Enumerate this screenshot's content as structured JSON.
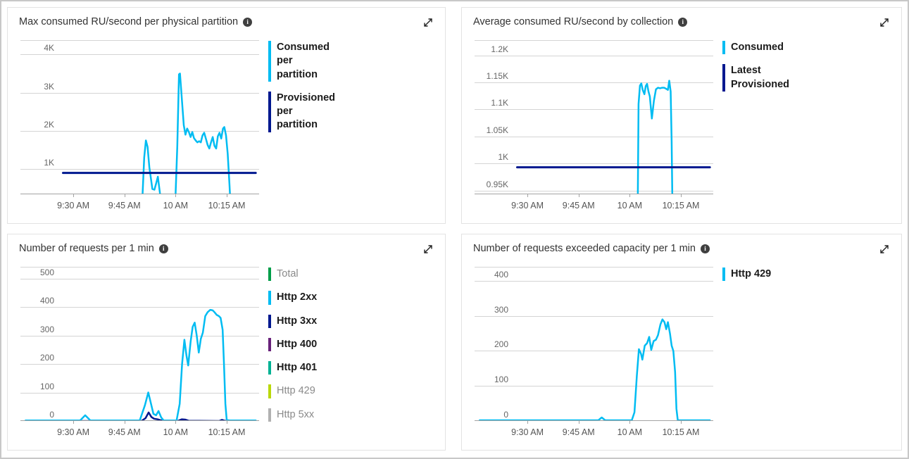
{
  "icons": {
    "info_icon": "i",
    "expand_icon": "diagonal-double-arrow"
  },
  "palette": {
    "cyan": "#00bcf2",
    "navy": "#00188f",
    "green": "#009e49",
    "purple": "#68217a",
    "teal": "#00b294",
    "lime": "#bad80a",
    "grey": "#b1b1b1"
  },
  "chart_data": [
    {
      "type": "line",
      "title": "Max consumed RU/second per physical partition",
      "x_ticks": [
        {
          "minute": 570,
          "label": "9:30 AM"
        },
        {
          "minute": 585,
          "label": "9:45 AM"
        },
        {
          "minute": 600,
          "label": "10 AM"
        },
        {
          "minute": 615,
          "label": "10:15 AM"
        }
      ],
      "x_domain_minutes": [
        554.5,
        624.5
      ],
      "y_domain": [
        340,
        4375
      ],
      "grid": true,
      "legend_position": "right",
      "y_gridlines": [
        {
          "value": 1000,
          "label": "1K"
        },
        {
          "value": 2000,
          "label": "2K"
        },
        {
          "value": 3000,
          "label": "3K"
        },
        {
          "value": 4000,
          "label": "4K"
        }
      ],
      "series": [
        {
          "name": "Consumed per partition",
          "color": "#00bcf2",
          "width": 2.5,
          "points": [
            [
              590.2,
              100
            ],
            [
              590.8,
              1300
            ],
            [
              591.3,
              1750
            ],
            [
              591.8,
              1580
            ],
            [
              592.3,
              1050
            ],
            [
              593.2,
              480
            ],
            [
              593.8,
              460
            ],
            [
              594.3,
              620
            ],
            [
              594.8,
              800
            ],
            [
              595.3,
              450
            ],
            [
              595.8,
              100
            ],
            [
              599.9,
              100
            ],
            [
              600.5,
              1600
            ],
            [
              601.0,
              3480
            ],
            [
              601.3,
              3500
            ],
            [
              601.9,
              2750
            ],
            [
              602.4,
              2150
            ],
            [
              602.9,
              1900
            ],
            [
              603.4,
              2060
            ],
            [
              603.9,
              1970
            ],
            [
              604.4,
              1840
            ],
            [
              604.9,
              1970
            ],
            [
              605.4,
              1810
            ],
            [
              605.9,
              1750
            ],
            [
              606.4,
              1700
            ],
            [
              606.9,
              1730
            ],
            [
              607.4,
              1700
            ],
            [
              607.9,
              1880
            ],
            [
              608.4,
              1950
            ],
            [
              608.9,
              1790
            ],
            [
              609.4,
              1630
            ],
            [
              609.9,
              1540
            ],
            [
              610.4,
              1700
            ],
            [
              610.9,
              1840
            ],
            [
              611.4,
              1610
            ],
            [
              611.9,
              1540
            ],
            [
              612.4,
              1860
            ],
            [
              612.9,
              1950
            ],
            [
              613.4,
              1800
            ],
            [
              613.9,
              2060
            ],
            [
              614.3,
              2100
            ],
            [
              614.8,
              1880
            ],
            [
              615.3,
              1400
            ],
            [
              615.8,
              600
            ],
            [
              616.1,
              100
            ]
          ]
        },
        {
          "name": "Provisioned per partition",
          "color": "#00188f",
          "width": 3,
          "points": [
            [
              567,
              900
            ],
            [
              623.5,
              900
            ]
          ]
        }
      ],
      "legend": [
        {
          "label": "Consumed per partition",
          "color": "#00bcf2",
          "emphasis": true
        },
        {
          "label": "Provisioned per partition",
          "color": "#00188f",
          "emphasis": true
        }
      ]
    },
    {
      "type": "line",
      "title": "Average consumed RU/second by collection",
      "x_ticks": [
        {
          "minute": 570,
          "label": "9:30 AM"
        },
        {
          "minute": 585,
          "label": "9:45 AM"
        },
        {
          "minute": 600,
          "label": "10 AM"
        },
        {
          "minute": 615,
          "label": "10:15 AM"
        }
      ],
      "x_domain_minutes": [
        554.5,
        624.5
      ],
      "y_domain": [
        943,
        1228
      ],
      "grid": true,
      "legend_position": "right",
      "y_gridlines": [
        {
          "value": 950,
          "label": "0.95K"
        },
        {
          "value": 1000,
          "label": "1K"
        },
        {
          "value": 1050,
          "label": "1.05K"
        },
        {
          "value": 1100,
          "label": "1.1K"
        },
        {
          "value": 1150,
          "label": "1.15K"
        },
        {
          "value": 1200,
          "label": "1.2K"
        }
      ],
      "series": [
        {
          "name": "Consumed",
          "color": "#00bcf2",
          "width": 2.5,
          "points": [
            [
              602.3,
              880
            ],
            [
              602.6,
              1110
            ],
            [
              603.0,
              1144
            ],
            [
              603.4,
              1148
            ],
            [
              603.8,
              1136
            ],
            [
              604.3,
              1128
            ],
            [
              604.7,
              1143
            ],
            [
              605.1,
              1147
            ],
            [
              605.5,
              1133
            ],
            [
              605.9,
              1124
            ],
            [
              606.5,
              1083
            ],
            [
              607.1,
              1116
            ],
            [
              607.7,
              1137
            ],
            [
              608.3,
              1140
            ],
            [
              608.9,
              1139
            ],
            [
              609.5,
              1140
            ],
            [
              610.1,
              1140
            ],
            [
              610.7,
              1138
            ],
            [
              611.2,
              1136
            ],
            [
              611.6,
              1153
            ],
            [
              612.0,
              1133
            ],
            [
              612.3,
              1040
            ],
            [
              612.6,
              880
            ]
          ]
        },
        {
          "name": "Latest Provisioned",
          "color": "#00188f",
          "width": 3,
          "points": [
            [
              567,
              993
            ],
            [
              623.5,
              993
            ]
          ]
        }
      ],
      "legend": [
        {
          "label": "Consumed",
          "color": "#00bcf2",
          "emphasis": true
        },
        {
          "label": "Latest Provisioned",
          "color": "#00188f",
          "emphasis": true
        }
      ]
    },
    {
      "type": "line",
      "title": "Number of requests per 1 min",
      "x_ticks": [
        {
          "minute": 570,
          "label": "9:30 AM"
        },
        {
          "minute": 585,
          "label": "9:45 AM"
        },
        {
          "minute": 600,
          "label": "10 AM"
        },
        {
          "minute": 615,
          "label": "10:15 AM"
        }
      ],
      "x_domain_minutes": [
        554.5,
        624.5
      ],
      "y_domain": [
        0,
        541
      ],
      "grid": true,
      "legend_position": "right",
      "y_gridlines": [
        {
          "value": 0,
          "label": "0"
        },
        {
          "value": 100,
          "label": "100"
        },
        {
          "value": 200,
          "label": "200"
        },
        {
          "value": 300,
          "label": "300"
        },
        {
          "value": 400,
          "label": "400"
        },
        {
          "value": 500,
          "label": "500"
        }
      ],
      "series": [
        {
          "name": "Total",
          "color": "#009e49",
          "width": 2,
          "points": [
            [
              556,
              0
            ],
            [
              623.5,
              0
            ]
          ]
        },
        {
          "name": "Http 400",
          "color": "#68217a",
          "width": 2,
          "points": [
            [
              556,
              0
            ],
            [
              623.5,
              0
            ]
          ]
        },
        {
          "name": "Http 401",
          "color": "#00b294",
          "width": 2,
          "points": [
            [
              556,
              0
            ],
            [
              623.5,
              0
            ]
          ]
        },
        {
          "name": "Http 429",
          "color": "#bad80a",
          "width": 2,
          "points": [
            [
              556,
              0
            ],
            [
              623.5,
              0
            ]
          ]
        },
        {
          "name": "Http 5xx",
          "color": "#b1b1b1",
          "width": 2,
          "points": [
            [
              556,
              0
            ],
            [
              623.5,
              0
            ]
          ]
        },
        {
          "name": "Http 3xx",
          "color": "#00188f",
          "width": 2.5,
          "points": [
            [
              556,
              0
            ],
            [
              590,
              0
            ],
            [
              591.2,
              10
            ],
            [
              592.1,
              30
            ],
            [
              592.9,
              14
            ],
            [
              593.7,
              8
            ],
            [
              594.7,
              6
            ],
            [
              595.6,
              3
            ],
            [
              596.6,
              0
            ],
            [
              600.8,
              1
            ],
            [
              601.8,
              6
            ],
            [
              602.8,
              5
            ],
            [
              603.8,
              1
            ],
            [
              612.8,
              0
            ],
            [
              613.6,
              4
            ],
            [
              614.4,
              1
            ],
            [
              623.5,
              0
            ]
          ]
        },
        {
          "name": "Http 2xx",
          "color": "#00bcf2",
          "width": 2.5,
          "points": [
            [
              556,
              2
            ],
            [
              572,
              2
            ],
            [
              573.5,
              20
            ],
            [
              575,
              2
            ],
            [
              589.5,
              2
            ],
            [
              591,
              55
            ],
            [
              592,
              100
            ],
            [
              592.8,
              60
            ],
            [
              593.5,
              25
            ],
            [
              594.3,
              20
            ],
            [
              595,
              35
            ],
            [
              595.8,
              12
            ],
            [
              596.5,
              2
            ],
            [
              600.3,
              2
            ],
            [
              601.2,
              60
            ],
            [
              601.9,
              200
            ],
            [
              602.6,
              285
            ],
            [
              603.2,
              230
            ],
            [
              603.7,
              195
            ],
            [
              604.4,
              278
            ],
            [
              605.0,
              330
            ],
            [
              605.6,
              345
            ],
            [
              606.2,
              300
            ],
            [
              606.8,
              240
            ],
            [
              607.4,
              288
            ],
            [
              608.0,
              310
            ],
            [
              608.7,
              368
            ],
            [
              609.4,
              382
            ],
            [
              610.2,
              390
            ],
            [
              610.9,
              388
            ],
            [
              611.4,
              382
            ],
            [
              612.1,
              372
            ],
            [
              612.7,
              368
            ],
            [
              613.2,
              362
            ],
            [
              613.8,
              320
            ],
            [
              614.2,
              200
            ],
            [
              614.6,
              60
            ],
            [
              615.0,
              3
            ],
            [
              616,
              2
            ],
            [
              623.5,
              2
            ]
          ]
        }
      ],
      "legend": [
        {
          "label": "Total",
          "color": "#009e49",
          "emphasis": false
        },
        {
          "label": "Http 2xx",
          "color": "#00bcf2",
          "emphasis": true
        },
        {
          "label": "Http 3xx",
          "color": "#00188f",
          "emphasis": true
        },
        {
          "label": "Http 400",
          "color": "#68217a",
          "emphasis": true
        },
        {
          "label": "Http 401",
          "color": "#00b294",
          "emphasis": true
        },
        {
          "label": "Http 429",
          "color": "#bad80a",
          "emphasis": false
        },
        {
          "label": "Http 5xx",
          "color": "#b1b1b1",
          "emphasis": false
        }
      ]
    },
    {
      "type": "line",
      "title": "Number of requests exceeded capacity per 1 min",
      "x_ticks": [
        {
          "minute": 570,
          "label": "9:30 AM"
        },
        {
          "minute": 585,
          "label": "9:45 AM"
        },
        {
          "minute": 600,
          "label": "10 AM"
        },
        {
          "minute": 615,
          "label": "10:15 AM"
        }
      ],
      "x_domain_minutes": [
        554.5,
        624.5
      ],
      "y_domain": [
        0,
        440
      ],
      "grid": true,
      "legend_position": "right",
      "y_gridlines": [
        {
          "value": 0,
          "label": "0"
        },
        {
          "value": 100,
          "label": "100"
        },
        {
          "value": 200,
          "label": "200"
        },
        {
          "value": 300,
          "label": "300"
        },
        {
          "value": 400,
          "label": "400"
        }
      ],
      "series": [
        {
          "name": "Http 429",
          "color": "#00bcf2",
          "width": 2.5,
          "points": [
            [
              556,
              2
            ],
            [
              572,
              2
            ],
            [
              590.8,
              2
            ],
            [
              591.8,
              10
            ],
            [
              592.8,
              2
            ],
            [
              600.6,
              2
            ],
            [
              601.4,
              25
            ],
            [
              602.1,
              130
            ],
            [
              602.7,
              205
            ],
            [
              603.3,
              192
            ],
            [
              603.7,
              175
            ],
            [
              604.4,
              215
            ],
            [
              605.1,
              222
            ],
            [
              605.7,
              240
            ],
            [
              606.3,
              203
            ],
            [
              607.0,
              228
            ],
            [
              607.7,
              232
            ],
            [
              608.3,
              245
            ],
            [
              609.0,
              275
            ],
            [
              609.6,
              290
            ],
            [
              610.2,
              282
            ],
            [
              610.7,
              262
            ],
            [
              611.2,
              282
            ],
            [
              611.8,
              250
            ],
            [
              612.3,
              215
            ],
            [
              612.8,
              200
            ],
            [
              613.3,
              140
            ],
            [
              613.7,
              35
            ],
            [
              614.1,
              2
            ],
            [
              623.5,
              2
            ]
          ]
        }
      ],
      "legend": [
        {
          "label": "Http 429",
          "color": "#00bcf2",
          "emphasis": true
        }
      ]
    }
  ]
}
